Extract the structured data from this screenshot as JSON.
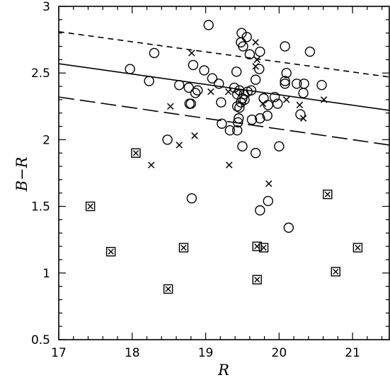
{
  "chart_data": {
    "type": "scatter",
    "title": "",
    "xlabel": "R",
    "ylabel": "B−R",
    "xlim": [
      17,
      21.5
    ],
    "ylim": [
      0.5,
      3
    ],
    "x_ticks": [
      17,
      18,
      19,
      20,
      21
    ],
    "x_tick_labels": [
      "17",
      "18",
      "19",
      "20",
      "21"
    ],
    "y_ticks": [
      0.5,
      1,
      1.5,
      2,
      2.5,
      3
    ],
    "y_tick_labels": [
      "0.5",
      "1",
      "1.5",
      "2",
      "2.5",
      "3"
    ],
    "grid": false,
    "color": "#000000",
    "series": [
      {
        "marker": "open-circle",
        "points": [
          [
            19.04,
            2.86
          ],
          [
            19.49,
            2.8
          ],
          [
            19.56,
            2.77
          ],
          [
            19.48,
            2.73
          ],
          [
            19.51,
            2.7
          ],
          [
            18.3,
            2.65
          ],
          [
            19.6,
            2.64
          ],
          [
            19.74,
            2.66
          ],
          [
            20.08,
            2.7
          ],
          [
            20.42,
            2.66
          ],
          [
            17.97,
            2.53
          ],
          [
            18.83,
            2.56
          ],
          [
            18.98,
            2.52
          ],
          [
            19.42,
            2.51
          ],
          [
            19.73,
            2.53
          ],
          [
            20.1,
            2.5
          ],
          [
            19.68,
            2.45
          ],
          [
            20.08,
            2.44
          ],
          [
            20.24,
            2.42
          ],
          [
            20.34,
            2.42
          ],
          [
            20.58,
            2.41
          ],
          [
            18.23,
            2.44
          ],
          [
            18.64,
            2.41
          ],
          [
            18.77,
            2.39
          ],
          [
            18.89,
            2.37
          ],
          [
            18.86,
            2.35
          ],
          [
            19.09,
            2.46
          ],
          [
            19.18,
            2.42
          ],
          [
            19.39,
            2.39
          ],
          [
            19.46,
            2.37
          ],
          [
            19.43,
            2.34
          ],
          [
            19.52,
            2.34
          ],
          [
            19.57,
            2.36
          ],
          [
            19.62,
            2.37
          ],
          [
            19.5,
            2.31
          ],
          [
            19.53,
            2.3
          ],
          [
            19.48,
            2.28
          ],
          [
            19.43,
            2.25
          ],
          [
            19.46,
            2.24
          ],
          [
            19.79,
            2.31
          ],
          [
            19.94,
            2.32
          ],
          [
            20.08,
            2.42
          ],
          [
            20.33,
            2.35
          ],
          [
            19.21,
            2.28
          ],
          [
            18.8,
            2.27
          ],
          [
            18.78,
            2.27
          ],
          [
            19.98,
            2.27
          ],
          [
            19.85,
            2.26
          ],
          [
            19.84,
            2.18
          ],
          [
            19.74,
            2.16
          ],
          [
            19.63,
            2.15
          ],
          [
            19.45,
            2.16
          ],
          [
            19.44,
            2.13
          ],
          [
            19.22,
            2.12
          ],
          [
            19.33,
            2.07
          ],
          [
            19.43,
            2.07
          ],
          [
            20.29,
            2.19
          ],
          [
            18.48,
            2.0
          ],
          [
            19.5,
            1.95
          ],
          [
            19.68,
            1.9
          ],
          [
            20.0,
            1.95
          ],
          [
            18.81,
            1.56
          ],
          [
            19.85,
            1.54
          ],
          [
            19.74,
            1.47
          ],
          [
            20.13,
            1.34
          ]
        ]
      },
      {
        "marker": "cross",
        "points": [
          [
            18.81,
            2.65
          ],
          [
            19.68,
            2.73
          ],
          [
            19.7,
            2.6
          ],
          [
            19.68,
            2.55
          ],
          [
            18.52,
            2.25
          ],
          [
            19.07,
            2.36
          ],
          [
            19.31,
            2.36
          ],
          [
            19.78,
            2.27
          ],
          [
            20.1,
            2.3
          ],
          [
            20.28,
            2.26
          ],
          [
            20.61,
            2.3
          ],
          [
            20.33,
            2.16
          ],
          [
            18.64,
            1.96
          ],
          [
            18.85,
            2.03
          ],
          [
            18.26,
            1.81
          ],
          [
            19.32,
            1.81
          ],
          [
            19.86,
            1.67
          ]
        ]
      },
      {
        "marker": "boxed-cross",
        "points": [
          [
            18.05,
            1.9
          ],
          [
            17.43,
            1.5
          ],
          [
            20.66,
            1.59
          ],
          [
            17.71,
            1.16
          ],
          [
            18.7,
            1.19
          ],
          [
            19.7,
            1.2
          ],
          [
            19.79,
            1.19
          ],
          [
            21.07,
            1.19
          ],
          [
            20.77,
            1.01
          ],
          [
            18.49,
            0.88
          ],
          [
            19.7,
            0.95
          ]
        ]
      }
    ],
    "lines": [
      {
        "style": "short-dash",
        "x": [
          17,
          21.5
        ],
        "y": [
          2.81,
          2.47
        ]
      },
      {
        "style": "solid",
        "x": [
          17,
          21.5
        ],
        "y": [
          2.57,
          2.22
        ]
      },
      {
        "style": "long-dash",
        "x": [
          17,
          21.5
        ],
        "y": [
          2.32,
          1.96
        ]
      }
    ]
  }
}
